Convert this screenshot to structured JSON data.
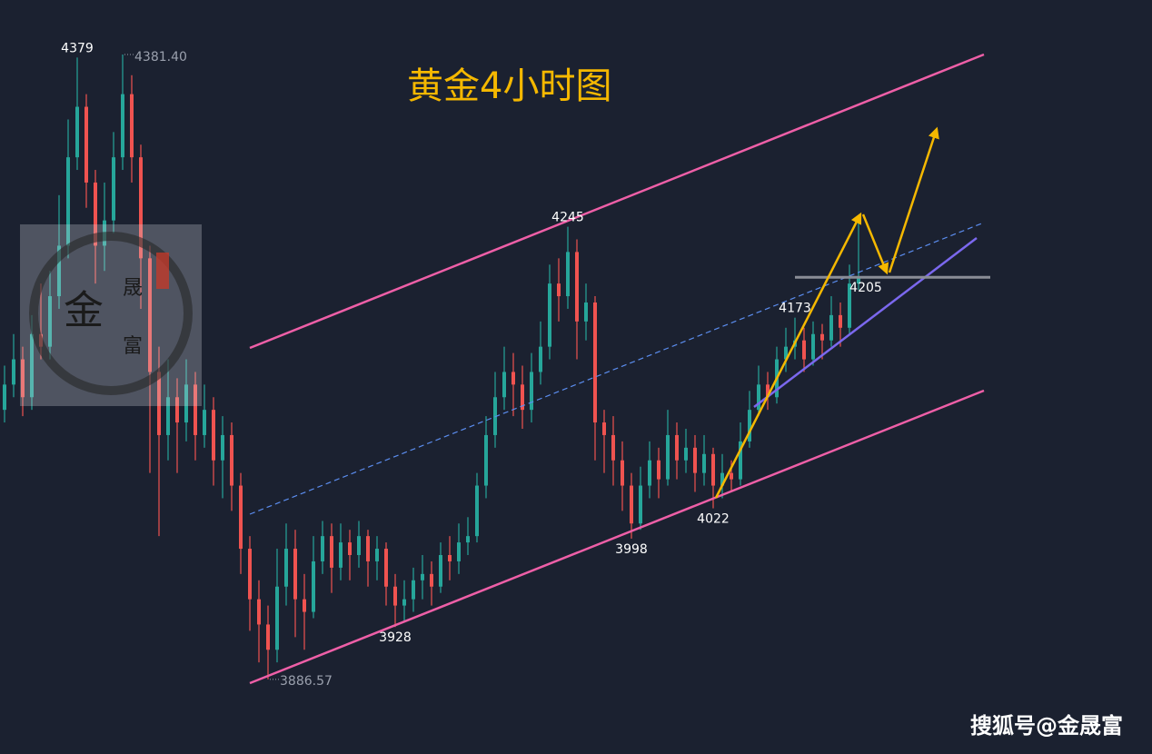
{
  "chart_data": {
    "type": "candlestick",
    "title": "黄金4小时图",
    "watermark": "搜狐号@金晟富",
    "logo": [
      "金",
      "晟",
      "富"
    ],
    "up_color": "#26a69a",
    "down_color": "#ef5350",
    "open": [
      4100,
      4120,
      4140,
      4110,
      4160,
      4150,
      4190,
      4230,
      4300,
      4340,
      4280,
      4230,
      4250,
      4300,
      4350,
      4300,
      4220,
      4130,
      4080,
      4110,
      4090,
      4120,
      4080,
      4100,
      4060,
      4080,
      4040,
      3990,
      3950,
      3930,
      3910,
      3960,
      3990,
      3950,
      3940,
      3980,
      4000,
      3975,
      3995,
      3985,
      4000,
      3980,
      3990,
      3960,
      3945,
      3950,
      3965,
      3970,
      3960,
      3985,
      3980,
      3995,
      4000,
      4040,
      4080,
      4110,
      4130,
      4120,
      4100,
      4130,
      4150,
      4200,
      4190,
      4225,
      4170,
      4185,
      4090,
      4080,
      4060,
      4040,
      4010,
      4040,
      4060,
      4045,
      4080,
      4060,
      4070,
      4050,
      4065,
      4040,
      4050,
      4045,
      4075,
      4100,
      4120,
      4110,
      4140,
      4150,
      4155,
      4140,
      4160,
      4155,
      4175,
      4165,
      4200
    ],
    "high": [
      4135,
      4160,
      4150,
      4175,
      4200,
      4210,
      4270,
      4330,
      4379,
      4350,
      4290,
      4280,
      4320,
      4381.4,
      4365,
      4310,
      4230,
      4150,
      4140,
      4125,
      4140,
      4130,
      4120,
      4110,
      4095,
      4090,
      4050,
      4000,
      3965,
      3945,
      3990,
      4010,
      4005,
      3970,
      4000,
      4012,
      4010,
      4010,
      4005,
      4012,
      4005,
      4000,
      3995,
      3970,
      3965,
      3975,
      3985,
      3980,
      3995,
      4000,
      4010,
      4015,
      4050,
      4095,
      4130,
      4150,
      4145,
      4135,
      4145,
      4170,
      4215,
      4220,
      4245,
      4235,
      4200,
      4190,
      4100,
      4095,
      4075,
      4050,
      4055,
      4075,
      4070,
      4100,
      4090,
      4085,
      4080,
      4080,
      4070,
      4065,
      4060,
      4090,
      4115,
      4135,
      4130,
      4150,
      4165,
      4173,
      4165,
      4170,
      4168,
      4190,
      4185,
      4215,
      4250
    ],
    "low": [
      4090,
      4110,
      4095,
      4100,
      4140,
      4140,
      4180,
      4220,
      4290,
      4260,
      4200,
      4210,
      4240,
      4290,
      4280,
      4180,
      4050,
      4000,
      4060,
      4050,
      4075,
      4060,
      4070,
      4040,
      4030,
      4020,
      3970,
      3925,
      3900,
      3886.57,
      3900,
      3945,
      3920,
      3910,
      3935,
      3970,
      3955,
      3965,
      3965,
      3975,
      3960,
      3965,
      3945,
      3928,
      3932,
      3940,
      3950,
      3945,
      3955,
      3965,
      3970,
      3985,
      3995,
      4030,
      4070,
      4100,
      4095,
      4085,
      4090,
      4120,
      4140,
      4170,
      4180,
      4140,
      4155,
      4060,
      4050,
      4040,
      4020,
      3998,
      4005,
      4030,
      4030,
      4040,
      4045,
      4050,
      4035,
      4040,
      4022,
      4030,
      4035,
      4040,
      4070,
      4095,
      4100,
      4105,
      4130,
      4140,
      4130,
      4135,
      4140,
      4150,
      4150,
      4160,
      4195
    ],
    "close": [
      4120,
      4140,
      4110,
      4160,
      4150,
      4190,
      4230,
      4300,
      4340,
      4280,
      4230,
      4250,
      4300,
      4350,
      4300,
      4220,
      4130,
      4080,
      4110,
      4090,
      4120,
      4080,
      4100,
      4060,
      4080,
      4040,
      3990,
      3950,
      3930,
      3910,
      3960,
      3990,
      3950,
      3940,
      3980,
      4000,
      3975,
      3995,
      3985,
      4000,
      3980,
      3990,
      3960,
      3945,
      3950,
      3965,
      3970,
      3960,
      3985,
      3980,
      3995,
      4000,
      4040,
      4080,
      4110,
      4130,
      4120,
      4100,
      4130,
      4150,
      4200,
      4190,
      4225,
      4170,
      4185,
      4090,
      4080,
      4060,
      4040,
      4010,
      4040,
      4060,
      4045,
      4080,
      4060,
      4070,
      4050,
      4065,
      4040,
      4050,
      4045,
      4075,
      4100,
      4120,
      4110,
      4140,
      4150,
      4155,
      4140,
      4160,
      4155,
      4175,
      4165,
      4200,
      4205
    ],
    "annotations": [
      {
        "candle": 8,
        "value": 4379
      },
      {
        "candle": 13,
        "value": 4381.4,
        "label": "4381.40"
      },
      {
        "candle": 29,
        "value": 3886.57,
        "label": "3886.57"
      },
      {
        "candle": 43,
        "value": 3928
      },
      {
        "candle": 62,
        "value": 4245
      },
      {
        "candle": 69,
        "value": 3998
      },
      {
        "candle": 78,
        "value": 4022
      },
      {
        "candle": 87,
        "value": 4173
      }
    ],
    "levels": [
      {
        "value": 4205,
        "color": "#8a8d96"
      }
    ]
  }
}
